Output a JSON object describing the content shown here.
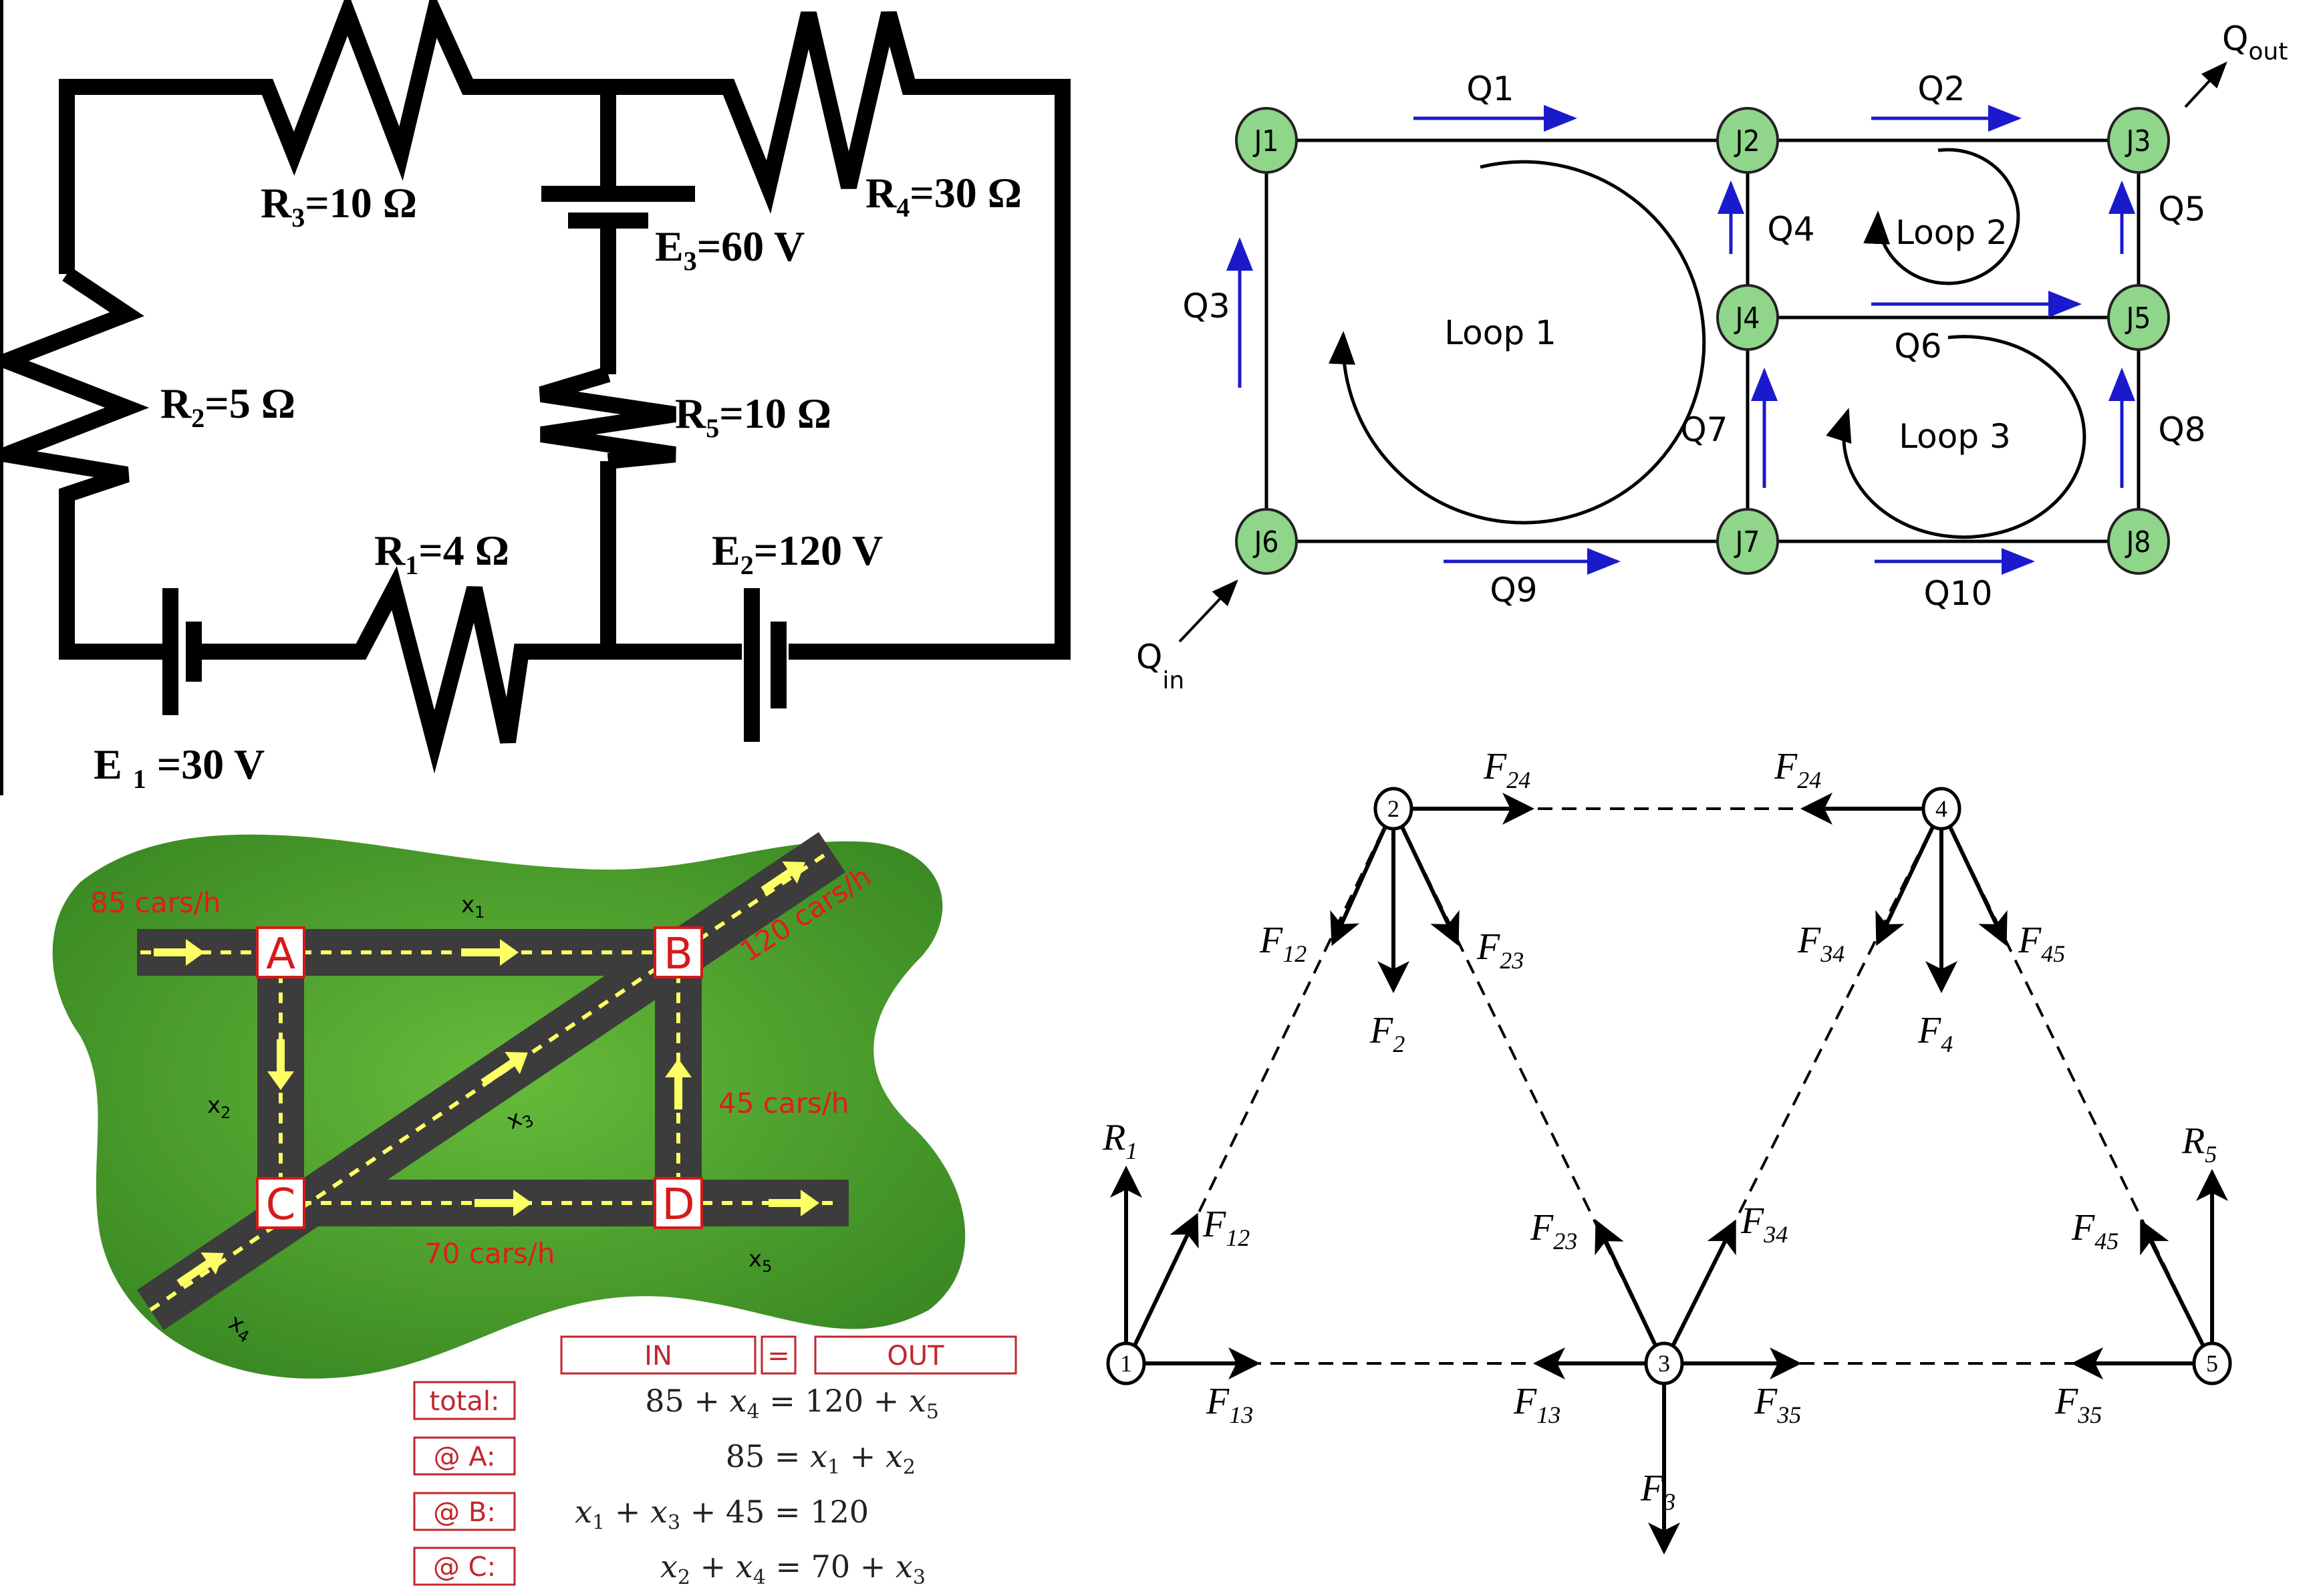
{
  "circuit": {
    "labels": {
      "r3": {
        "main": "R",
        "sub": "3",
        "rest": "=10 Ω"
      },
      "r4": {
        "main": "R",
        "sub": "4",
        "rest": "=30 Ω"
      },
      "e3": {
        "main": "E",
        "sub": "3",
        "rest": "=60 V"
      },
      "r2": {
        "main": "R",
        "sub": "2",
        "rest": "=5 Ω"
      },
      "r5": {
        "main": "R",
        "sub": "5",
        "rest": "=10 Ω"
      },
      "r1": {
        "main": "R",
        "sub": "1",
        "rest": "=4 Ω"
      },
      "e2": {
        "main": "E",
        "sub": "2",
        "rest": "=120 V"
      },
      "e1": {
        "main": "E ",
        "sub": "1",
        "rest": " =30 V"
      }
    }
  },
  "pipe_network": {
    "nodes": [
      "J1",
      "J2",
      "J3",
      "J4",
      "J5",
      "J6",
      "J7",
      "J8"
    ],
    "flows": [
      "Q1",
      "Q2",
      "Q3",
      "Q4",
      "Q5",
      "Q6",
      "Q7",
      "Q8",
      "Q9",
      "Q10"
    ],
    "loops": [
      "Loop 1",
      "Loop 2",
      "Loop 3"
    ],
    "q_out": {
      "main": "Q",
      "sub": "out"
    },
    "q_in": {
      "main": "Q",
      "sub": "in"
    }
  },
  "truss": {
    "nodes": [
      "1",
      "2",
      "3",
      "4",
      "5"
    ],
    "forces": {
      "f24": {
        "main": "F",
        "sub": "24"
      },
      "f12": {
        "main": "F",
        "sub": "12"
      },
      "f23": {
        "main": "F",
        "sub": "23"
      },
      "f2": {
        "main": "F",
        "sub": "2"
      },
      "f34": {
        "main": "F",
        "sub": "34"
      },
      "f4": {
        "main": "F",
        "sub": "4"
      },
      "f45": {
        "main": "F",
        "sub": "45"
      },
      "r1": {
        "main": "R",
        "sub": "1"
      },
      "r5": {
        "main": "R",
        "sub": "5"
      },
      "f13": {
        "main": "F",
        "sub": "13"
      },
      "f35": {
        "main": "F",
        "sub": "35"
      },
      "f3": {
        "main": "F",
        "sub": "3"
      }
    }
  },
  "traffic": {
    "intersections": [
      "A",
      "B",
      "C",
      "D"
    ],
    "flows": {
      "in_a": "85 cars/h",
      "out_b": "120 cars/h",
      "d_to_b": "45 cars/h",
      "c_to_d": "70 cars/h"
    },
    "vars": {
      "x1": {
        "main": "x",
        "sub": "1"
      },
      "x2": {
        "main": "x",
        "sub": "2"
      },
      "x3": {
        "main": "x",
        "sub": "3"
      },
      "x4": {
        "main": "x",
        "sub": "4"
      },
      "x5": {
        "main": "x",
        "sub": "5"
      }
    },
    "balance": {
      "in": "IN",
      "eq": "=",
      "out": "OUT"
    },
    "equations": [
      {
        "label": "total:",
        "parts": [
          {
            "t": "85 + "
          },
          {
            "t": "x",
            "i": true
          },
          {
            "t": "4",
            "s": true
          },
          {
            "t": " = 120 + "
          },
          {
            "t": "x",
            "i": true
          },
          {
            "t": "5",
            "s": true
          }
        ]
      },
      {
        "label": "@ A:",
        "parts": [
          {
            "t": "85 = "
          },
          {
            "t": "x",
            "i": true
          },
          {
            "t": "1",
            "s": true
          },
          {
            "t": " + "
          },
          {
            "t": "x",
            "i": true
          },
          {
            "t": "2",
            "s": true
          }
        ]
      },
      {
        "label": "@ B:",
        "parts": [
          {
            "t": "x",
            "i": true
          },
          {
            "t": "1",
            "s": true
          },
          {
            "t": " + "
          },
          {
            "t": "x",
            "i": true
          },
          {
            "t": "3",
            "s": true
          },
          {
            "t": " + 45 = 120"
          }
        ]
      },
      {
        "label": "@ C:",
        "parts": [
          {
            "t": "x",
            "i": true
          },
          {
            "t": "2",
            "s": true
          },
          {
            "t": " + "
          },
          {
            "t": "x",
            "i": true
          },
          {
            "t": "4",
            "s": true
          },
          {
            "t": " = 70 + "
          },
          {
            "t": "x",
            "i": true
          },
          {
            "t": "3",
            "s": true
          }
        ]
      }
    ]
  },
  "colors": {
    "wire": "#000000",
    "node_fill": "#8fd68a",
    "flow_arrow": "#1a1acc",
    "grass": "#4fa62e",
    "road": "#3a3a3a",
    "road_arrow": "#ffff66",
    "traffic_red": "#e31b1b"
  }
}
